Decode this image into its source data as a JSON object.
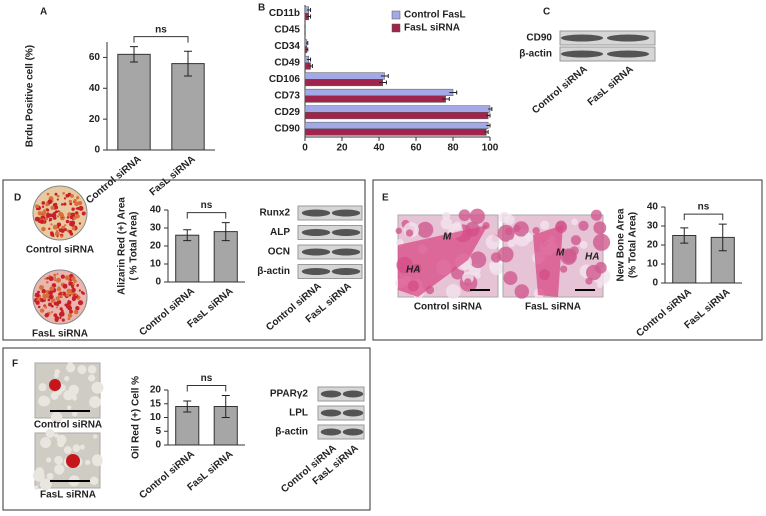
{
  "chart_data": [
    {
      "type": "bar",
      "panel": "A",
      "y_label": [
        "Brdu Positive cell (%)"
      ],
      "categories": [
        "Control siRNA",
        "FasL siRNA"
      ],
      "values": [
        62,
        56
      ],
      "errors": [
        5,
        8
      ],
      "color": "#a6a6a6",
      "ylim": [
        0,
        70
      ],
      "yticks": [
        0,
        20,
        40,
        60
      ],
      "annotation": "ns"
    },
    {
      "type": "barh",
      "panel": "B",
      "categories": [
        "CD11b",
        "CD45",
        "CD34",
        "CD49",
        "CD106",
        "CD73",
        "CD29",
        "CD90"
      ],
      "series": [
        {
          "name": "Control FasL",
          "color": "#a3a9e6",
          "values": [
            2,
            0,
            1,
            2,
            43,
            80,
            100,
            99
          ],
          "errors": [
            1,
            0,
            0.5,
            1,
            2,
            2,
            1,
            1
          ]
        },
        {
          "name": "FasL siRNA",
          "color": "#a0244c",
          "values": [
            2,
            0,
            1,
            3,
            42,
            76,
            99,
            98
          ],
          "errors": [
            1,
            0,
            0.5,
            1,
            2,
            2,
            1,
            1
          ]
        }
      ],
      "xlim": [
        0,
        100
      ],
      "xticks": [
        0,
        20,
        40,
        60,
        80,
        100
      ],
      "legend": "upper right"
    },
    {
      "type": "bar",
      "panel": "D",
      "y_label": [
        "Alizarin Red (+) Area",
        "( % Total Area)"
      ],
      "categories": [
        "Control siRNA",
        "FasL siRNA"
      ],
      "values": [
        26,
        28
      ],
      "errors": [
        3,
        5
      ],
      "color": "#a6a6a6",
      "ylim": [
        0,
        40
      ],
      "yticks": [
        0,
        10,
        20,
        30,
        40
      ],
      "annotation": "ns"
    },
    {
      "type": "bar",
      "panel": "E",
      "y_label": [
        "New Bone Area",
        "(% Total Area)"
      ],
      "categories": [
        "Control siRNA",
        "FasL siRNA"
      ],
      "values": [
        25,
        24
      ],
      "errors": [
        4,
        7
      ],
      "color": "#a6a6a6",
      "ylim": [
        0,
        40
      ],
      "yticks": [
        0,
        10,
        20,
        30,
        40
      ],
      "annotation": "ns"
    },
    {
      "type": "bar",
      "panel": "F",
      "y_label": [
        "Oil Red (+) Cell %"
      ],
      "categories": [
        "Control siRNA",
        "FasL siRNA"
      ],
      "values": [
        14,
        14
      ],
      "errors": [
        2,
        4
      ],
      "color": "#a6a6a6",
      "ylim": [
        0,
        20
      ],
      "yticks": [
        0,
        5,
        10,
        15,
        20
      ],
      "annotation": "ns"
    }
  ],
  "blots": [
    {
      "panel": "C",
      "bands": [
        "CD90",
        "β-actin"
      ],
      "lanes": [
        "Control siRNA",
        "FasL siRNA"
      ]
    },
    {
      "bands": [
        "Runx2",
        "ALP",
        "OCN",
        "β-actin"
      ],
      "lanes": [
        "Control siRNA",
        "FasL siRNA"
      ]
    },
    {
      "bands": [
        "PPARγ2",
        "LPL",
        "β-actin"
      ],
      "lanes": [
        "Control siRNA",
        "FasL siRNA"
      ]
    }
  ],
  "images": [
    {
      "captions": [
        "Control siRNA",
        "FasL siRNA"
      ]
    },
    {
      "captions": [
        "Control siRNA",
        "FasL siRNA"
      ],
      "marks": [
        [
          "M",
          "HA"
        ],
        [
          "M",
          "HA"
        ]
      ]
    },
    {
      "captions": [
        "Control siRNA",
        "FasL siRNA"
      ]
    }
  ]
}
